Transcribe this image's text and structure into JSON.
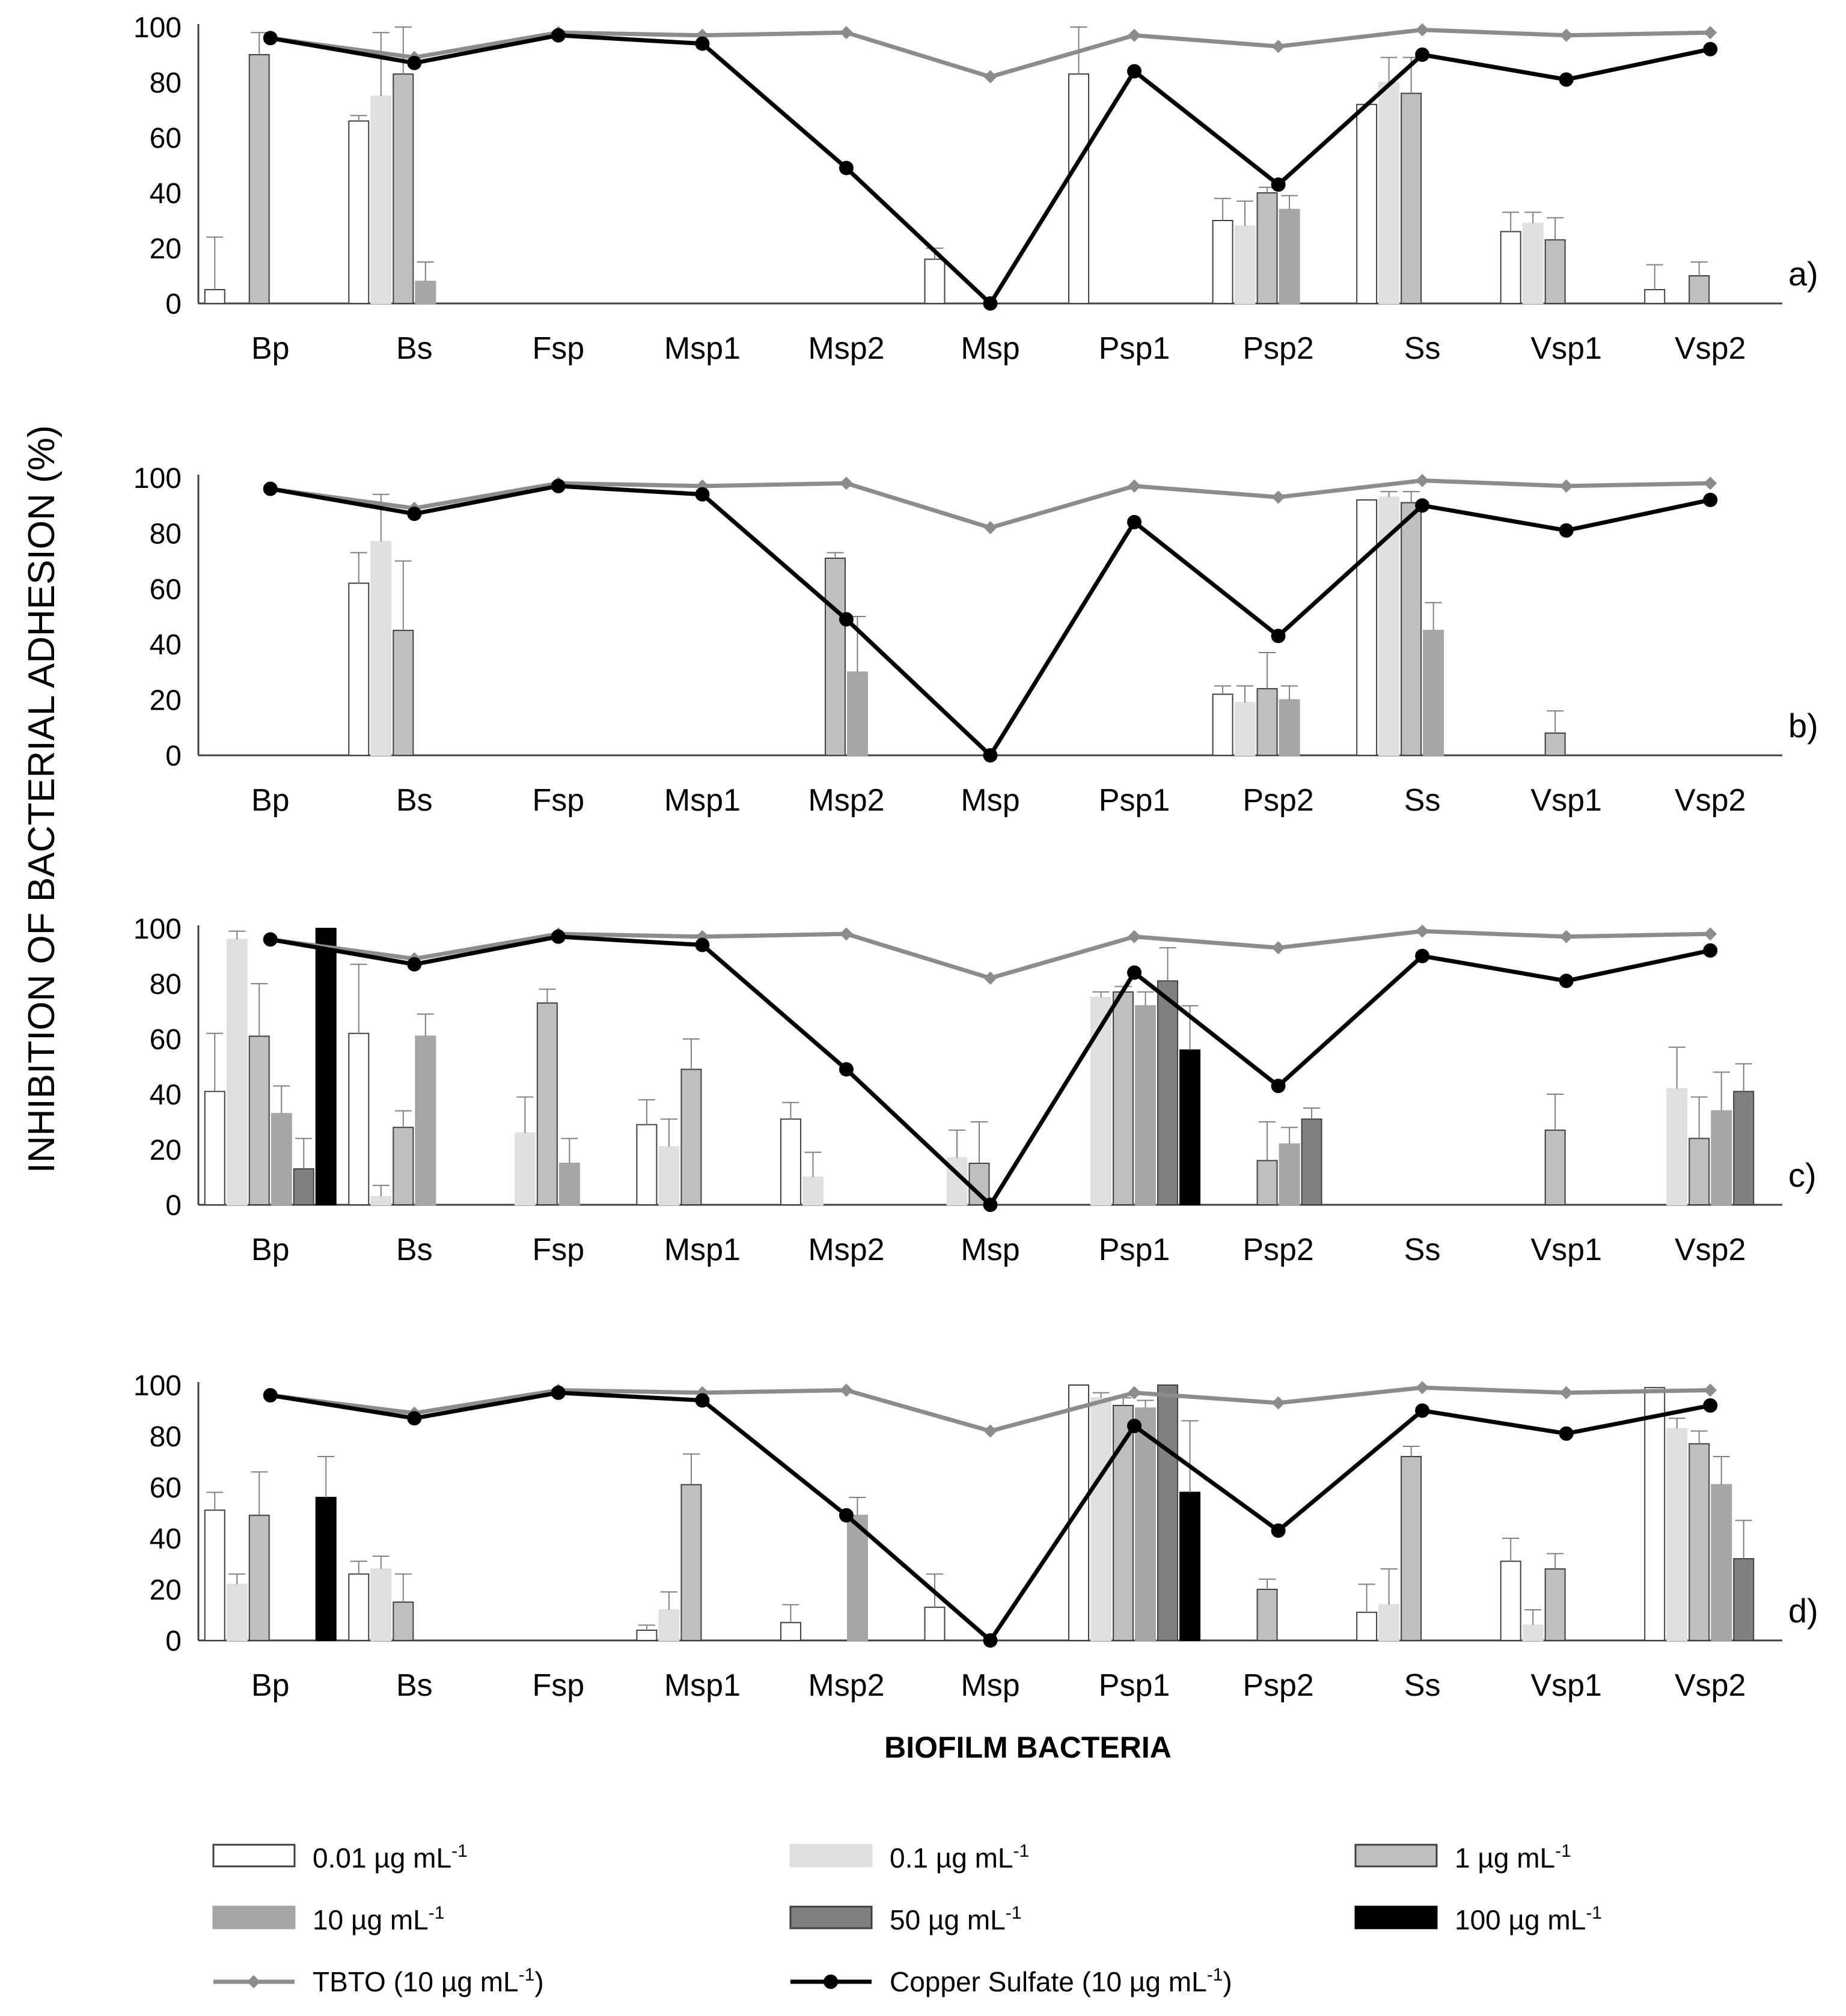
{
  "ylabel": "INHIBITION OF BACTERIAL ADHESION (%)",
  "xlabel": "BIOFILM BACTERIA",
  "y_ticks": [
    "0",
    "20",
    "40",
    "60",
    "80",
    "100"
  ],
  "legend": [
    {
      "key": "c001",
      "label": "0.01 µg mL",
      "sup": "-1",
      "kind": "bar",
      "fill": "#ffffff",
      "stroke": "#404040"
    },
    {
      "key": "c01",
      "label": "0.1 µg mL",
      "sup": "-1",
      "kind": "bar",
      "fill": "#e0e0e0",
      "stroke": "#e0e0e0"
    },
    {
      "key": "c1",
      "label": "1 µg mL",
      "sup": "-1",
      "kind": "bar",
      "fill": "#bfbfbf",
      "stroke": "#404040"
    },
    {
      "key": "c10",
      "label": "10 µg mL",
      "sup": "-1",
      "kind": "bar",
      "fill": "#a6a6a6",
      "stroke": "#a6a6a6"
    },
    {
      "key": "c50",
      "label": "50 µg mL",
      "sup": "-1",
      "kind": "bar",
      "fill": "#808080",
      "stroke": "#404040"
    },
    {
      "key": "c100",
      "label": "100 µg mL",
      "sup": "-1",
      "kind": "bar",
      "fill": "#000000",
      "stroke": "#000000"
    },
    {
      "key": "tbto",
      "label": "TBTO (10 µg mL",
      "sup": "-1",
      "suffix": ")",
      "kind": "line",
      "color": "#8c8c8c",
      "marker": "diamond"
    },
    {
      "key": "cuso4",
      "label": "Copper Sulfate (10 µg mL",
      "sup": "-1",
      "suffix": ")",
      "kind": "line",
      "color": "#000000",
      "marker": "circle"
    }
  ],
  "chart_data": [
    {
      "type": "bar",
      "panel": "a)",
      "ylim": [
        0,
        100
      ],
      "categories": [
        "Bp",
        "Bs",
        "Fsp",
        "Msp1",
        "Msp2",
        "Msp",
        "Psp1",
        "Psp2",
        "Ss",
        "Vsp1",
        "Vsp2"
      ],
      "series": [
        {
          "name": "0.01 µg mL-1",
          "key": "c001",
          "values": [
            5,
            66,
            0,
            0,
            0,
            16,
            83,
            30,
            72,
            26,
            5
          ],
          "errors": [
            19,
            2,
            0,
            0,
            0,
            4,
            17,
            8,
            0,
            7,
            9
          ]
        },
        {
          "name": "0.1 µg mL-1",
          "key": "c01",
          "values": [
            0,
            75,
            0,
            0,
            0,
            0,
            0,
            28,
            80,
            29,
            0
          ],
          "errors": [
            0,
            23,
            0,
            0,
            0,
            0,
            0,
            9,
            9,
            4,
            0
          ]
        },
        {
          "name": "1 µg mL-1",
          "key": "c1",
          "values": [
            90,
            83,
            0,
            0,
            0,
            0,
            0,
            40,
            76,
            23,
            10
          ],
          "errors": [
            8,
            17,
            0,
            0,
            0,
            0,
            0,
            2,
            13,
            8,
            5
          ]
        },
        {
          "name": "10 µg mL-1",
          "key": "c10",
          "values": [
            0,
            8,
            0,
            0,
            0,
            0,
            0,
            34,
            0,
            0,
            0
          ],
          "errors": [
            0,
            7,
            0,
            0,
            0,
            0,
            0,
            5,
            0,
            0,
            0
          ]
        },
        {
          "name": "50 µg mL-1",
          "key": "c50",
          "values": [
            0,
            0,
            0,
            0,
            0,
            0,
            0,
            0,
            0,
            0,
            0
          ],
          "errors": [
            0,
            0,
            0,
            0,
            0,
            0,
            0,
            0,
            0,
            0,
            0
          ]
        },
        {
          "name": "100 µg mL-1",
          "key": "c100",
          "values": [
            0,
            0,
            0,
            0,
            0,
            0,
            0,
            0,
            0,
            0,
            0
          ],
          "errors": [
            0,
            0,
            0,
            0,
            0,
            0,
            0,
            0,
            0,
            0,
            0
          ]
        }
      ],
      "lines": [
        {
          "name": "TBTO (10 µg mL-1)",
          "key": "tbto",
          "values": [
            96,
            89,
            98,
            97,
            98,
            82,
            97,
            93,
            99,
            97,
            98
          ]
        },
        {
          "name": "Copper Sulfate (10 µg mL-1)",
          "key": "cuso4",
          "values": [
            96,
            87,
            97,
            94,
            49,
            0,
            84,
            43,
            90,
            81,
            92
          ]
        }
      ]
    },
    {
      "type": "bar",
      "panel": "b)",
      "ylim": [
        0,
        100
      ],
      "categories": [
        "Bp",
        "Bs",
        "Fsp",
        "Msp1",
        "Msp2",
        "Msp",
        "Psp1",
        "Psp2",
        "Ss",
        "Vsp1",
        "Vsp2"
      ],
      "series": [
        {
          "name": "0.01 µg mL-1",
          "key": "c001",
          "values": [
            0,
            62,
            0,
            0,
            0,
            0,
            0,
            22,
            92,
            0,
            0
          ],
          "errors": [
            0,
            11,
            0,
            0,
            0,
            0,
            0,
            3,
            0,
            0,
            0
          ]
        },
        {
          "name": "0.1 µg mL-1",
          "key": "c01",
          "values": [
            0,
            77,
            0,
            0,
            0,
            0,
            0,
            19,
            93,
            0,
            0
          ],
          "errors": [
            0,
            17,
            0,
            0,
            0,
            0,
            0,
            6,
            2,
            0,
            0
          ]
        },
        {
          "name": "1 µg mL-1",
          "key": "c1",
          "values": [
            0,
            45,
            0,
            0,
            71,
            0,
            0,
            24,
            91,
            8,
            0
          ],
          "errors": [
            0,
            25,
            0,
            0,
            2,
            0,
            0,
            13,
            4,
            8,
            0
          ]
        },
        {
          "name": "10 µg mL-1",
          "key": "c10",
          "values": [
            0,
            0,
            0,
            0,
            30,
            0,
            0,
            20,
            45,
            0,
            0
          ],
          "errors": [
            0,
            0,
            0,
            0,
            20,
            0,
            0,
            5,
            10,
            0,
            0
          ]
        },
        {
          "name": "50 µg mL-1",
          "key": "c50",
          "values": [
            0,
            0,
            0,
            0,
            0,
            0,
            0,
            0,
            0,
            0,
            0
          ],
          "errors": [
            0,
            0,
            0,
            0,
            0,
            0,
            0,
            0,
            0,
            0,
            0
          ]
        },
        {
          "name": "100 µg mL-1",
          "key": "c100",
          "values": [
            0,
            0,
            0,
            0,
            0,
            0,
            0,
            0,
            0,
            0,
            0
          ],
          "errors": [
            0,
            0,
            0,
            0,
            0,
            0,
            0,
            0,
            0,
            0,
            0
          ]
        }
      ],
      "lines": [
        {
          "name": "TBTO (10 µg mL-1)",
          "key": "tbto",
          "values": [
            96,
            89,
            98,
            97,
            98,
            82,
            97,
            93,
            99,
            97,
            98
          ]
        },
        {
          "name": "Copper Sulfate (10 µg mL-1)",
          "key": "cuso4",
          "values": [
            96,
            87,
            97,
            94,
            49,
            0,
            84,
            43,
            90,
            81,
            92
          ]
        }
      ]
    },
    {
      "type": "bar",
      "panel": "c)",
      "ylim": [
        0,
        100
      ],
      "categories": [
        "Bp",
        "Bs",
        "Fsp",
        "Msp1",
        "Msp2",
        "Msp",
        "Psp1",
        "Psp2",
        "Ss",
        "Vsp1",
        "Vsp2"
      ],
      "series": [
        {
          "name": "0.01 µg mL-1",
          "key": "c001",
          "values": [
            41,
            62,
            0,
            29,
            31,
            0,
            0,
            0,
            0,
            0,
            0
          ],
          "errors": [
            21,
            25,
            0,
            9,
            6,
            0,
            0,
            0,
            0,
            0,
            0
          ]
        },
        {
          "name": "0.1 µg mL-1",
          "key": "c01",
          "values": [
            96,
            3,
            26,
            21,
            10,
            17,
            75,
            0,
            0,
            0,
            42
          ],
          "errors": [
            3,
            4,
            13,
            10,
            9,
            10,
            2,
            0,
            0,
            0,
            15
          ]
        },
        {
          "name": "1 µg mL-1",
          "key": "c1",
          "values": [
            61,
            28,
            73,
            49,
            0,
            15,
            77,
            16,
            0,
            27,
            24
          ],
          "errors": [
            19,
            6,
            5,
            11,
            0,
            15,
            2,
            14,
            0,
            13,
            15
          ]
        },
        {
          "name": "10 µg mL-1",
          "key": "c10",
          "values": [
            33,
            61,
            15,
            0,
            0,
            0,
            72,
            22,
            0,
            0,
            34
          ],
          "errors": [
            10,
            8,
            9,
            0,
            0,
            0,
            5,
            6,
            0,
            0,
            14
          ]
        },
        {
          "name": "50 µg mL-1",
          "key": "c50",
          "values": [
            13,
            0,
            0,
            0,
            0,
            0,
            81,
            31,
            0,
            0,
            41
          ],
          "errors": [
            11,
            0,
            0,
            0,
            0,
            0,
            12,
            4,
            0,
            0,
            10
          ]
        },
        {
          "name": "100 µg mL-1",
          "key": "c100",
          "values": [
            100,
            0,
            0,
            0,
            0,
            0,
            56,
            0,
            0,
            0,
            0
          ],
          "errors": [
            0,
            0,
            0,
            0,
            0,
            0,
            16,
            0,
            0,
            0,
            0
          ]
        }
      ],
      "lines": [
        {
          "name": "TBTO (10 µg mL-1)",
          "key": "tbto",
          "values": [
            96,
            89,
            98,
            97,
            98,
            82,
            97,
            93,
            99,
            97,
            98
          ]
        },
        {
          "name": "Copper Sulfate (10 µg mL-1)",
          "key": "cuso4",
          "values": [
            96,
            87,
            97,
            94,
            49,
            0,
            84,
            43,
            90,
            81,
            92
          ]
        }
      ]
    },
    {
      "type": "bar",
      "panel": "d)",
      "ylim": [
        0,
        100
      ],
      "categories": [
        "Bp",
        "Bs",
        "Fsp",
        "Msp1",
        "Msp2",
        "Msp",
        "Psp1",
        "Psp2",
        "Ss",
        "Vsp1",
        "Vsp2"
      ],
      "series": [
        {
          "name": "0.01 µg mL-1",
          "key": "c001",
          "values": [
            51,
            26,
            0,
            4,
            7,
            13,
            100,
            0,
            11,
            31,
            99
          ],
          "errors": [
            7,
            5,
            0,
            2,
            7,
            13,
            0,
            0,
            11,
            9,
            0
          ]
        },
        {
          "name": "0.1 µg mL-1",
          "key": "c01",
          "values": [
            22,
            28,
            0,
            12,
            0,
            0,
            95,
            0,
            14,
            6,
            83
          ],
          "errors": [
            4,
            5,
            0,
            7,
            0,
            0,
            2,
            0,
            14,
            6,
            4
          ]
        },
        {
          "name": "1 µg mL-1",
          "key": "c1",
          "values": [
            49,
            15,
            0,
            61,
            0,
            0,
            92,
            20,
            72,
            28,
            77
          ],
          "errors": [
            17,
            11,
            0,
            12,
            0,
            0,
            3,
            4,
            4,
            6,
            5
          ]
        },
        {
          "name": "10 µg mL-1",
          "key": "c10",
          "values": [
            0,
            0,
            0,
            0,
            49,
            0,
            91,
            0,
            0,
            0,
            61
          ],
          "errors": [
            0,
            0,
            0,
            0,
            7,
            0,
            3,
            0,
            0,
            0,
            11
          ]
        },
        {
          "name": "50 µg mL-1",
          "key": "c50",
          "values": [
            0,
            0,
            0,
            0,
            0,
            0,
            100,
            0,
            0,
            0,
            32
          ],
          "errors": [
            0,
            0,
            0,
            0,
            0,
            0,
            0,
            0,
            0,
            0,
            15
          ]
        },
        {
          "name": "100 µg mL-1",
          "key": "c100",
          "values": [
            56,
            0,
            0,
            0,
            0,
            0,
            58,
            0,
            0,
            0,
            0
          ],
          "errors": [
            16,
            0,
            0,
            0,
            0,
            0,
            28,
            0,
            0,
            0,
            0
          ]
        }
      ],
      "lines": [
        {
          "name": "TBTO (10 µg mL-1)",
          "key": "tbto",
          "values": [
            96,
            89,
            98,
            97,
            98,
            82,
            97,
            93,
            99,
            97,
            98
          ]
        },
        {
          "name": "Copper Sulfate (10 µg mL-1)",
          "key": "cuso4",
          "values": [
            96,
            87,
            97,
            94,
            49,
            0,
            84,
            43,
            90,
            81,
            92
          ]
        }
      ]
    }
  ]
}
